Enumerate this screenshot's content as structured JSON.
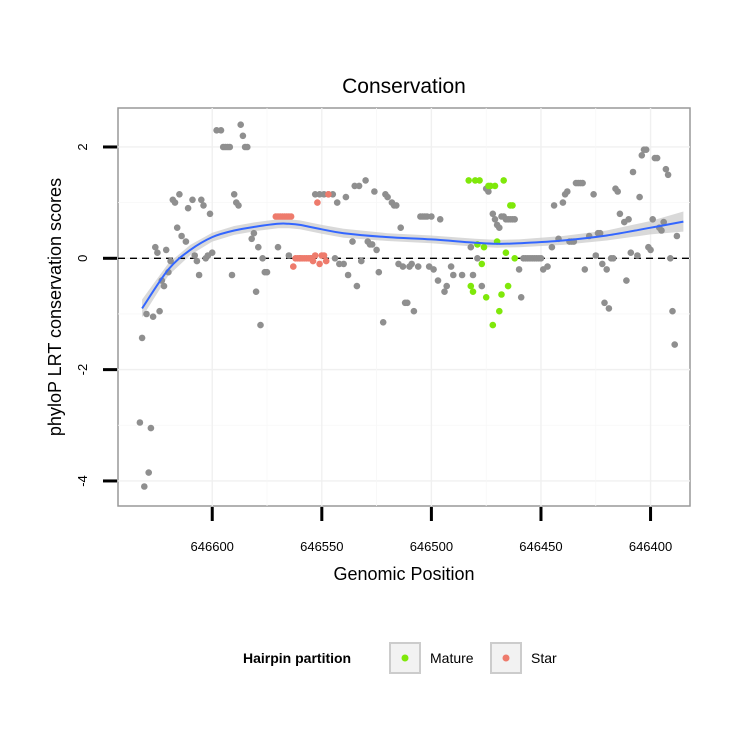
{
  "chart_data": {
    "type": "scatter",
    "title": "Conservation",
    "xlabel": "Genomic Position",
    "ylabel": "phyloP LRT conservation scores",
    "x_reversed": true,
    "xlim": [
      646643,
      646382
    ],
    "ylim": [
      -4.45,
      2.7
    ],
    "x_ticks": [
      646600,
      646550,
      646500,
      646450,
      646400
    ],
    "x_tick_labels": [
      "646600",
      "646550",
      "646500",
      "646450",
      "646400"
    ],
    "y_ticks": [
      2,
      0,
      -2,
      -4
    ],
    "y_tick_labels": [
      "2",
      "0",
      "-2",
      "-4"
    ],
    "reference_line": {
      "y": 0,
      "style": "dashed"
    },
    "legend": {
      "title": "Hairpin partition",
      "position": "bottom",
      "entries": [
        {
          "label": "Mature",
          "color": "#7FE80A"
        },
        {
          "label": "Star",
          "color": "#EE7B6C"
        }
      ]
    },
    "colors": {
      "other": "#8F8F8F",
      "mature": "#7FE80A",
      "star": "#EE7B6C",
      "smooth_line": "#3366FF",
      "ribbon": "#CCCCCC",
      "panel_border": "#999999"
    },
    "series": [
      {
        "name": "Other",
        "points": [
          [
            646633,
            -2.95
          ],
          [
            646631,
            -4.1
          ],
          [
            646629,
            -3.85
          ],
          [
            646628,
            -3.05
          ],
          [
            646630,
            -1.0
          ],
          [
            646632,
            -1.43
          ],
          [
            646627,
            -1.05
          ],
          [
            646624,
            -0.95
          ],
          [
            646626,
            0.2
          ],
          [
            646625,
            0.1
          ],
          [
            646623,
            -0.4
          ],
          [
            646622,
            -0.5
          ],
          [
            646620,
            -0.25
          ],
          [
            646619,
            -0.05
          ],
          [
            646621,
            0.15
          ],
          [
            646618,
            1.05
          ],
          [
            646617,
            1.0
          ],
          [
            646615,
            1.15
          ],
          [
            646616,
            0.55
          ],
          [
            646614,
            0.4
          ],
          [
            646612,
            0.3
          ],
          [
            646611,
            0.9
          ],
          [
            646609,
            1.05
          ],
          [
            646608,
            0.05
          ],
          [
            646607,
            -0.05
          ],
          [
            646606,
            -0.3
          ],
          [
            646605,
            1.05
          ],
          [
            646604,
            0.95
          ],
          [
            646603,
            0.0
          ],
          [
            646602,
            0.05
          ],
          [
            646601,
            0.8
          ],
          [
            646600,
            0.1
          ],
          [
            646598,
            2.3
          ],
          [
            646596,
            2.3
          ],
          [
            646595,
            2.0
          ],
          [
            646594,
            2.0
          ],
          [
            646593,
            2.0
          ],
          [
            646592,
            2.0
          ],
          [
            646591,
            -0.3
          ],
          [
            646590,
            1.15
          ],
          [
            646589,
            1.0
          ],
          [
            646588,
            0.95
          ],
          [
            646587,
            2.4
          ],
          [
            646586,
            2.2
          ],
          [
            646585,
            2.0
          ],
          [
            646584,
            2.0
          ],
          [
            646582,
            0.35
          ],
          [
            646581,
            0.45
          ],
          [
            646580,
            -0.6
          ],
          [
            646579,
            0.2
          ],
          [
            646578,
            -1.2
          ],
          [
            646577,
            0.0
          ],
          [
            646576,
            -0.25
          ],
          [
            646575,
            -0.25
          ],
          [
            646570,
            0.2
          ],
          [
            646565,
            0.05
          ],
          [
            646560,
            0.0
          ],
          [
            646555,
            0.0
          ],
          [
            646553,
            1.15
          ],
          [
            646551,
            1.15
          ],
          [
            646549,
            1.15
          ],
          [
            646547,
            1.15
          ],
          [
            646545,
            1.15
          ],
          [
            646544,
            0.0
          ],
          [
            646543,
            1.0
          ],
          [
            646542,
            -0.1
          ],
          [
            646540,
            -0.1
          ],
          [
            646539,
            1.1
          ],
          [
            646538,
            -0.3
          ],
          [
            646536,
            0.3
          ],
          [
            646535,
            1.3
          ],
          [
            646534,
            -0.5
          ],
          [
            646533,
            1.3
          ],
          [
            646532,
            -0.05
          ],
          [
            646530,
            1.4
          ],
          [
            646529,
            0.3
          ],
          [
            646528,
            0.25
          ],
          [
            646527,
            0.25
          ],
          [
            646526,
            1.2
          ],
          [
            646525,
            0.15
          ],
          [
            646524,
            -0.25
          ],
          [
            646522,
            -1.15
          ],
          [
            646521,
            1.15
          ],
          [
            646520,
            1.1
          ],
          [
            646518,
            1.0
          ],
          [
            646517,
            0.95
          ],
          [
            646516,
            0.95
          ],
          [
            646515,
            -0.1
          ],
          [
            646514,
            0.55
          ],
          [
            646513,
            -0.15
          ],
          [
            646512,
            -0.8
          ],
          [
            646511,
            -0.8
          ],
          [
            646510,
            -0.15
          ],
          [
            646509,
            -0.1
          ],
          [
            646508,
            -0.95
          ],
          [
            646506,
            -0.15
          ],
          [
            646505,
            0.75
          ],
          [
            646504,
            0.75
          ],
          [
            646503,
            0.75
          ],
          [
            646502,
            0.75
          ],
          [
            646501,
            -0.15
          ],
          [
            646500,
            0.75
          ],
          [
            646499,
            -0.2
          ],
          [
            646497,
            -0.4
          ],
          [
            646496,
            0.7
          ],
          [
            646494,
            -0.6
          ],
          [
            646493,
            -0.5
          ],
          [
            646491,
            -0.15
          ],
          [
            646490,
            -0.3
          ],
          [
            646486,
            -0.3
          ],
          [
            646482,
            0.2
          ],
          [
            646481,
            -0.3
          ],
          [
            646479,
            0.0
          ],
          [
            646477,
            -0.5
          ],
          [
            646475,
            1.25
          ],
          [
            646474,
            1.2
          ],
          [
            646472,
            0.8
          ],
          [
            646471,
            0.7
          ],
          [
            646470,
            0.6
          ],
          [
            646469,
            0.55
          ],
          [
            646468,
            0.75
          ],
          [
            646467,
            0.75
          ],
          [
            646466,
            0.7
          ],
          [
            646465,
            0.7
          ],
          [
            646464,
            0.7
          ],
          [
            646463,
            0.7
          ],
          [
            646462,
            0.7
          ],
          [
            646460,
            -0.2
          ],
          [
            646459,
            -0.7
          ],
          [
            646458,
            0.0
          ],
          [
            646457,
            0.0
          ],
          [
            646456,
            0.0
          ],
          [
            646455,
            0.0
          ],
          [
            646454,
            0.0
          ],
          [
            646453,
            0.0
          ],
          [
            646452,
            0.0
          ],
          [
            646451,
            0.0
          ],
          [
            646450,
            0.0
          ],
          [
            646449,
            -0.2
          ],
          [
            646447,
            -0.15
          ],
          [
            646445,
            0.2
          ],
          [
            646444,
            0.95
          ],
          [
            646442,
            0.35
          ],
          [
            646440,
            1.0
          ],
          [
            646439,
            1.15
          ],
          [
            646438,
            1.2
          ],
          [
            646437,
            0.3
          ],
          [
            646436,
            0.3
          ],
          [
            646435,
            0.3
          ],
          [
            646434,
            1.35
          ],
          [
            646433,
            1.35
          ],
          [
            646432,
            1.35
          ],
          [
            646431,
            1.35
          ],
          [
            646430,
            -0.2
          ],
          [
            646428,
            0.4
          ],
          [
            646426,
            1.15
          ],
          [
            646425,
            0.05
          ],
          [
            646424,
            0.45
          ],
          [
            646423,
            0.45
          ],
          [
            646422,
            -0.1
          ],
          [
            646421,
            -0.8
          ],
          [
            646420,
            -0.2
          ],
          [
            646419,
            -0.9
          ],
          [
            646418,
            0.0
          ],
          [
            646417,
            0.0
          ],
          [
            646416,
            1.25
          ],
          [
            646415,
            1.2
          ],
          [
            646414,
            0.8
          ],
          [
            646412,
            0.65
          ],
          [
            646411,
            -0.4
          ],
          [
            646410,
            0.7
          ],
          [
            646409,
            0.1
          ],
          [
            646408,
            1.55
          ],
          [
            646406,
            0.05
          ],
          [
            646405,
            1.1
          ],
          [
            646404,
            1.85
          ],
          [
            646403,
            1.95
          ],
          [
            646402,
            1.95
          ],
          [
            646401,
            0.2
          ],
          [
            646400,
            0.15
          ],
          [
            646399,
            0.7
          ],
          [
            646398,
            1.8
          ],
          [
            646397,
            1.8
          ],
          [
            646396,
            0.55
          ],
          [
            646395,
            0.5
          ],
          [
            646394,
            0.65
          ],
          [
            646393,
            1.6
          ],
          [
            646392,
            1.5
          ],
          [
            646391,
            0.0
          ],
          [
            646390,
            -0.95
          ],
          [
            646389,
            -1.55
          ],
          [
            646388,
            0.4
          ]
        ]
      },
      {
        "name": "Mature",
        "points": [
          [
            646483,
            1.4
          ],
          [
            646482,
            -0.5
          ],
          [
            646481,
            -0.6
          ],
          [
            646480,
            1.4
          ],
          [
            646479,
            0.25
          ],
          [
            646478,
            1.4
          ],
          [
            646477,
            -0.1
          ],
          [
            646476,
            0.2
          ],
          [
            646475,
            -0.7
          ],
          [
            646474,
            1.3
          ],
          [
            646473,
            1.3
          ],
          [
            646472,
            -1.2
          ],
          [
            646471,
            1.3
          ],
          [
            646470,
            0.3
          ],
          [
            646469,
            -0.95
          ],
          [
            646468,
            -0.65
          ],
          [
            646467,
            1.4
          ],
          [
            646466,
            0.1
          ],
          [
            646465,
            -0.5
          ],
          [
            646464,
            0.95
          ],
          [
            646463,
            0.95
          ],
          [
            646462,
            0.0
          ]
        ]
      },
      {
        "name": "Star",
        "points": [
          [
            646571,
            0.75
          ],
          [
            646570,
            0.75
          ],
          [
            646569,
            0.75
          ],
          [
            646568,
            0.75
          ],
          [
            646567,
            0.75
          ],
          [
            646566,
            0.75
          ],
          [
            646565,
            0.75
          ],
          [
            646564,
            0.75
          ],
          [
            646563,
            -0.15
          ],
          [
            646562,
            0.0
          ],
          [
            646561,
            0.0
          ],
          [
            646560,
            0.0
          ],
          [
            646559,
            0.0
          ],
          [
            646558,
            0.0
          ],
          [
            646557,
            0.0
          ],
          [
            646556,
            0.0
          ],
          [
            646555,
            0.0
          ],
          [
            646554,
            -0.05
          ],
          [
            646553,
            0.05
          ],
          [
            646552,
            1.0
          ],
          [
            646551,
            -0.1
          ],
          [
            646550,
            0.05
          ],
          [
            646549,
            0.05
          ],
          [
            646548,
            -0.05
          ],
          [
            646547,
            1.15
          ]
        ]
      }
    ],
    "smooth": {
      "method": "loess",
      "x": [
        646632,
        646620,
        646610,
        646600,
        646590,
        646580,
        646570,
        646565,
        646560,
        646550,
        646540,
        646520,
        646500,
        646480,
        646470,
        646460,
        646440,
        646420,
        646400,
        646385
      ],
      "y": [
        -0.9,
        -0.2,
        0.15,
        0.38,
        0.5,
        0.57,
        0.62,
        0.62,
        0.6,
        0.52,
        0.45,
        0.38,
        0.34,
        0.28,
        0.26,
        0.27,
        0.32,
        0.41,
        0.55,
        0.66
      ],
      "se": [
        0.16,
        0.11,
        0.09,
        0.08,
        0.08,
        0.08,
        0.08,
        0.08,
        0.08,
        0.08,
        0.08,
        0.07,
        0.07,
        0.07,
        0.07,
        0.07,
        0.08,
        0.09,
        0.12,
        0.18
      ]
    }
  }
}
